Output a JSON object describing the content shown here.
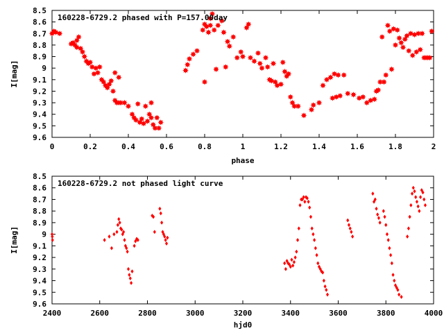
{
  "chart_data": [
    {
      "type": "scatter",
      "title": "160228-6729.2 phased with P=157.00day",
      "xlabel": "phase",
      "ylabel": "I[mag]",
      "xlim": [
        0,
        2
      ],
      "ylim": [
        8.5,
        9.6
      ],
      "y_inverted": true,
      "marker": "star",
      "color": "#ff0000",
      "x_ticks": [
        "0",
        "0.2",
        "0.4",
        "0.6",
        "0.8",
        "1",
        "1.2",
        "1.4",
        "1.6",
        "1.8",
        "2"
      ],
      "y_ticks": [
        "8.5",
        "8.6",
        "8.7",
        "8.8",
        "8.9",
        "9",
        "9.1",
        "9.2",
        "9.3",
        "9.4",
        "9.5",
        "9.6"
      ],
      "points": [
        [
          0.0,
          8.7
        ],
        [
          0.01,
          8.68
        ],
        [
          0.02,
          8.69
        ],
        [
          0.04,
          8.7
        ],
        [
          0.1,
          8.79
        ],
        [
          0.11,
          8.78
        ],
        [
          0.12,
          8.8
        ],
        [
          0.13,
          8.82
        ],
        [
          0.13,
          8.76
        ],
        [
          0.14,
          8.73
        ],
        [
          0.15,
          8.83
        ],
        [
          0.16,
          8.86
        ],
        [
          0.17,
          8.9
        ],
        [
          0.18,
          8.94
        ],
        [
          0.19,
          8.96
        ],
        [
          0.2,
          8.95
        ],
        [
          0.21,
          8.99
        ],
        [
          0.22,
          9.05
        ],
        [
          0.23,
          9.0
        ],
        [
          0.24,
          9.04
        ],
        [
          0.25,
          8.99
        ],
        [
          0.26,
          9.1
        ],
        [
          0.27,
          9.12
        ],
        [
          0.28,
          9.15
        ],
        [
          0.29,
          9.17
        ],
        [
          0.3,
          9.14
        ],
        [
          0.31,
          9.11
        ],
        [
          0.32,
          9.2
        ],
        [
          0.33,
          9.28
        ],
        [
          0.34,
          9.3
        ],
        [
          0.35,
          9.3
        ],
        [
          0.36,
          9.3
        ],
        [
          0.33,
          9.04
        ],
        [
          0.35,
          9.08
        ],
        [
          0.38,
          9.3
        ],
        [
          0.4,
          9.33
        ],
        [
          0.42,
          9.4
        ],
        [
          0.43,
          9.43
        ],
        [
          0.44,
          9.45
        ],
        [
          0.45,
          9.31
        ],
        [
          0.46,
          9.47
        ],
        [
          0.47,
          9.44
        ],
        [
          0.48,
          9.48
        ],
        [
          0.49,
          9.33
        ],
        [
          0.5,
          9.46
        ],
        [
          0.51,
          9.4
        ],
        [
          0.52,
          9.43
        ],
        [
          0.52,
          9.3
        ],
        [
          0.53,
          9.49
        ],
        [
          0.54,
          9.52
        ],
        [
          0.55,
          9.43
        ],
        [
          0.56,
          9.52
        ],
        [
          0.57,
          9.47
        ],
        [
          0.7,
          9.02
        ],
        [
          0.71,
          8.97
        ],
        [
          0.72,
          8.92
        ],
        [
          0.74,
          8.88
        ],
        [
          0.76,
          8.85
        ],
        [
          0.79,
          8.67
        ],
        [
          0.8,
          8.62
        ],
        [
          0.8,
          9.12
        ],
        [
          0.81,
          8.64
        ],
        [
          0.82,
          8.69
        ],
        [
          0.83,
          8.63
        ],
        [
          0.83,
          8.57
        ],
        [
          0.84,
          8.53
        ],
        [
          0.85,
          8.67
        ],
        [
          0.86,
          9.01
        ],
        [
          0.87,
          8.63
        ],
        [
          0.89,
          8.59
        ],
        [
          0.9,
          8.69
        ],
        [
          0.91,
          8.99
        ],
        [
          0.92,
          8.77
        ],
        [
          0.93,
          8.81
        ],
        [
          0.95,
          8.73
        ],
        [
          0.97,
          8.91
        ],
        [
          0.99,
          8.86
        ],
        [
          1.0,
          8.9
        ],
        [
          1.02,
          8.65
        ],
        [
          1.03,
          8.62
        ],
        [
          1.04,
          8.91
        ],
        [
          1.06,
          8.94
        ],
        [
          1.08,
          8.87
        ],
        [
          1.09,
          8.96
        ],
        [
          1.1,
          9.0
        ],
        [
          1.12,
          8.91
        ],
        [
          1.13,
          8.99
        ],
        [
          1.14,
          9.1
        ],
        [
          1.15,
          9.11
        ],
        [
          1.16,
          8.96
        ],
        [
          1.17,
          9.12
        ],
        [
          1.18,
          9.15
        ],
        [
          1.2,
          9.14
        ],
        [
          1.21,
          8.95
        ],
        [
          1.22,
          9.03
        ],
        [
          1.23,
          9.07
        ],
        [
          1.24,
          9.05
        ],
        [
          1.25,
          9.25
        ],
        [
          1.26,
          9.3
        ],
        [
          1.27,
          9.33
        ],
        [
          1.29,
          9.33
        ],
        [
          1.32,
          9.41
        ],
        [
          1.36,
          9.36
        ],
        [
          1.37,
          9.32
        ],
        [
          1.4,
          9.3
        ],
        [
          1.42,
          9.15
        ],
        [
          1.44,
          9.1
        ],
        [
          1.46,
          9.08
        ],
        [
          1.47,
          9.26
        ],
        [
          1.48,
          9.05
        ],
        [
          1.49,
          9.25
        ],
        [
          1.5,
          9.06
        ],
        [
          1.51,
          9.24
        ],
        [
          1.53,
          9.06
        ],
        [
          1.55,
          9.22
        ],
        [
          1.58,
          9.23
        ],
        [
          1.61,
          9.26
        ],
        [
          1.63,
          9.25
        ],
        [
          1.65,
          9.3
        ],
        [
          1.67,
          9.28
        ],
        [
          1.69,
          9.27
        ],
        [
          1.7,
          9.2
        ],
        [
          1.71,
          9.19
        ],
        [
          1.72,
          9.12
        ],
        [
          1.73,
          8.73
        ],
        [
          1.74,
          9.12
        ],
        [
          1.75,
          9.06
        ],
        [
          1.76,
          8.63
        ],
        [
          1.77,
          8.68
        ],
        [
          1.78,
          9.01
        ],
        [
          1.79,
          8.66
        ],
        [
          1.8,
          8.8
        ],
        [
          1.81,
          8.67
        ],
        [
          1.82,
          8.74
        ],
        [
          1.83,
          8.78
        ],
        [
          1.84,
          8.82
        ],
        [
          1.85,
          8.75
        ],
        [
          1.86,
          8.72
        ],
        [
          1.87,
          8.85
        ],
        [
          1.88,
          8.7
        ],
        [
          1.89,
          8.89
        ],
        [
          1.9,
          8.71
        ],
        [
          1.91,
          8.86
        ],
        [
          1.92,
          8.7
        ],
        [
          1.93,
          8.84
        ],
        [
          1.94,
          8.7
        ],
        [
          1.95,
          8.91
        ],
        [
          1.96,
          8.91
        ],
        [
          1.97,
          8.91
        ],
        [
          1.98,
          8.91
        ],
        [
          1.99,
          8.68
        ]
      ]
    },
    {
      "type": "scatter",
      "title": "160228-6729.2 not phased light curve",
      "xlabel": "hjd0",
      "ylabel": "I[mag]",
      "xlim": [
        2400,
        4000
      ],
      "ylim": [
        8.5,
        9.6
      ],
      "y_inverted": true,
      "marker": "diamond",
      "color": "#ff0000",
      "x_ticks": [
        "2400",
        "2600",
        "2800",
        "3000",
        "3200",
        "3400",
        "3600",
        "3800",
        "4000"
      ],
      "y_ticks": [
        "8.5",
        "8.6",
        "8.7",
        "8.8",
        "8.9",
        "9",
        "9.1",
        "9.2",
        "9.3",
        "9.4",
        "9.5",
        "9.6"
      ],
      "points": [
        [
          2400,
          9.0
        ],
        [
          2401,
          9.02
        ],
        [
          2402,
          9.05
        ],
        [
          2640,
          9.02
        ],
        [
          2650,
          9.12
        ],
        [
          2660,
          9.0
        ],
        [
          2672,
          8.98
        ],
        [
          2676,
          8.92
        ],
        [
          2680,
          8.87
        ],
        [
          2684,
          8.9
        ],
        [
          2688,
          8.95
        ],
        [
          2692,
          8.96
        ],
        [
          2696,
          9.0
        ],
        [
          2700,
          8.98
        ],
        [
          2704,
          9.05
        ],
        [
          2708,
          9.1
        ],
        [
          2712,
          9.12
        ],
        [
          2716,
          9.15
        ],
        [
          2720,
          9.3
        ],
        [
          2724,
          9.35
        ],
        [
          2728,
          9.38
        ],
        [
          2732,
          9.42
        ],
        [
          2736,
          9.32
        ],
        [
          2745,
          9.1
        ],
        [
          2750,
          9.06
        ],
        [
          2755,
          9.04
        ],
        [
          2760,
          9.05
        ],
        [
          2820,
          8.84
        ],
        [
          2825,
          8.85
        ],
        [
          2830,
          8.98
        ],
        [
          2852,
          8.78
        ],
        [
          2856,
          8.82
        ],
        [
          2860,
          8.9
        ],
        [
          2864,
          8.98
        ],
        [
          2868,
          9.0
        ],
        [
          2872,
          9.02
        ],
        [
          2876,
          9.05
        ],
        [
          2880,
          9.08
        ],
        [
          2884,
          9.03
        ],
        [
          2620,
          9.05
        ],
        [
          3375,
          9.25
        ],
        [
          3380,
          9.3
        ],
        [
          3385,
          9.23
        ],
        [
          3390,
          9.25
        ],
        [
          3395,
          9.26
        ],
        [
          3400,
          9.28
        ],
        [
          3405,
          9.22
        ],
        [
          3410,
          9.27
        ],
        [
          3415,
          9.24
        ],
        [
          3420,
          9.2
        ],
        [
          3425,
          9.15
        ],
        [
          3430,
          9.05
        ],
        [
          3435,
          8.95
        ],
        [
          3440,
          8.75
        ],
        [
          3445,
          8.7
        ],
        [
          3450,
          8.7
        ],
        [
          3455,
          8.68
        ],
        [
          3460,
          8.72
        ],
        [
          3465,
          8.68
        ],
        [
          3470,
          8.69
        ],
        [
          3475,
          8.72
        ],
        [
          3480,
          8.77
        ],
        [
          3485,
          8.85
        ],
        [
          3490,
          8.95
        ],
        [
          3495,
          9.0
        ],
        [
          3500,
          9.05
        ],
        [
          3505,
          9.12
        ],
        [
          3510,
          9.18
        ],
        [
          3515,
          9.25
        ],
        [
          3520,
          9.28
        ],
        [
          3525,
          9.3
        ],
        [
          3530,
          9.32
        ],
        [
          3535,
          9.33
        ],
        [
          3540,
          9.4
        ],
        [
          3545,
          9.45
        ],
        [
          3550,
          9.48
        ],
        [
          3555,
          9.52
        ],
        [
          3640,
          8.88
        ],
        [
          3645,
          8.92
        ],
        [
          3650,
          8.95
        ],
        [
          3655,
          8.98
        ],
        [
          3660,
          9.02
        ],
        [
          3745,
          8.65
        ],
        [
          3750,
          8.72
        ],
        [
          3755,
          8.7
        ],
        [
          3760,
          8.78
        ],
        [
          3765,
          8.83
        ],
        [
          3770,
          8.86
        ],
        [
          3775,
          8.9
        ],
        [
          3790,
          8.8
        ],
        [
          3795,
          8.85
        ],
        [
          3800,
          8.92
        ],
        [
          3805,
          9.0
        ],
        [
          3810,
          9.05
        ],
        [
          3815,
          9.12
        ],
        [
          3820,
          9.18
        ],
        [
          3825,
          9.25
        ],
        [
          3830,
          9.35
        ],
        [
          3835,
          9.4
        ],
        [
          3840,
          9.44
        ],
        [
          3845,
          9.46
        ],
        [
          3850,
          9.48
        ],
        [
          3855,
          9.52
        ],
        [
          3865,
          9.54
        ],
        [
          3890,
          9.02
        ],
        [
          3895,
          8.95
        ],
        [
          3900,
          8.85
        ],
        [
          3905,
          8.75
        ],
        [
          3910,
          8.65
        ],
        [
          3915,
          8.6
        ],
        [
          3920,
          8.63
        ],
        [
          3925,
          8.68
        ],
        [
          3930,
          8.72
        ],
        [
          3935,
          8.76
        ],
        [
          3940,
          8.8
        ],
        [
          3945,
          8.68
        ],
        [
          3950,
          8.62
        ],
        [
          3955,
          8.64
        ],
        [
          3960,
          8.7
        ],
        [
          3965,
          8.75
        ]
      ]
    }
  ]
}
